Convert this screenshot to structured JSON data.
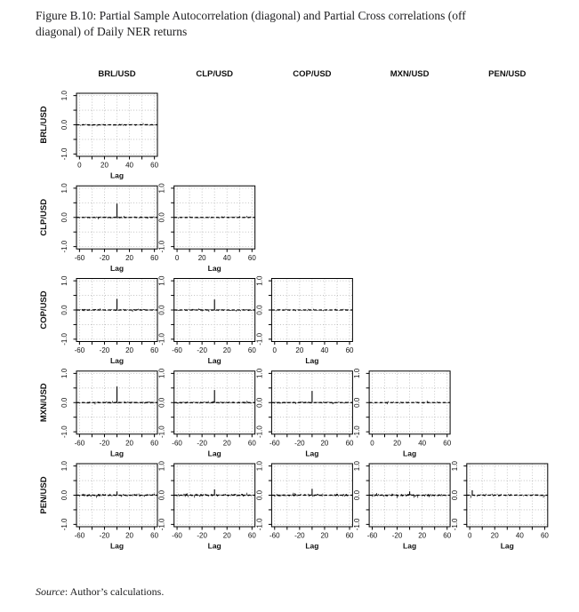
{
  "figure": {
    "title_line1": "Figure B.10: Partial Sample Autocorrelation (diagonal) and Partial Cross correlations (off",
    "title_line2": "diagonal) of Daily NER returns",
    "source_label": "Source",
    "source_text": ": Author’s calculations."
  },
  "matrix": {
    "variables": [
      "BRL/USD",
      "CLP/USD",
      "COP/USD",
      "MXN/USD",
      "PEN/USD"
    ],
    "xlabel": "Lag",
    "axes": {
      "diagonal": {
        "xlim": [
          0,
          60
        ],
        "x_ticks": [
          0,
          10,
          20,
          30,
          40,
          50,
          60
        ],
        "x_tick_labels": [
          "0",
          "20",
          "40",
          "60"
        ],
        "x_tick_label_values": [
          0,
          20,
          40,
          60
        ]
      },
      "off_diagonal": {
        "xlim": [
          -60,
          60
        ],
        "x_ticks": [
          -60,
          -40,
          -20,
          0,
          20,
          40,
          60
        ],
        "x_tick_labels": [
          "-60",
          "-20",
          "20",
          "60"
        ],
        "x_tick_label_values": [
          -60,
          -20,
          20,
          60
        ]
      },
      "ylim": [
        -1,
        1
      ],
      "y_ticks": [
        -1,
        -0.5,
        0,
        0.5,
        1
      ],
      "y_tick_labels": [
        "-1.0",
        "0.0",
        "1.0"
      ],
      "y_tick_label_values": [
        -1,
        0,
        1
      ],
      "grid": true,
      "zero_line": true
    }
  },
  "chart_data": [
    {
      "type": "line",
      "grid": [
        0,
        0
      ],
      "row_var": "BRL/USD",
      "col_var": "BRL/USD",
      "diagonal": true,
      "xlabel": "Lag",
      "xlim": [
        0,
        60
      ],
      "ylim": [
        -1,
        1
      ],
      "peak": null,
      "noise_amplitude": 0.04
    },
    {
      "type": "line",
      "grid": [
        1,
        0
      ],
      "row_var": "CLP/USD",
      "col_var": "BRL/USD",
      "diagonal": false,
      "xlabel": "Lag",
      "xlim": [
        -60,
        60
      ],
      "ylim": [
        -1,
        1
      ],
      "peak": {
        "lag": 0,
        "value": 0.47
      },
      "noise_amplitude": 0.035
    },
    {
      "type": "line",
      "grid": [
        1,
        1
      ],
      "row_var": "CLP/USD",
      "col_var": "CLP/USD",
      "diagonal": true,
      "xlabel": "Lag",
      "xlim": [
        0,
        60
      ],
      "ylim": [
        -1,
        1
      ],
      "peak": null,
      "noise_amplitude": 0.04
    },
    {
      "type": "line",
      "grid": [
        2,
        0
      ],
      "row_var": "COP/USD",
      "col_var": "BRL/USD",
      "diagonal": false,
      "xlabel": "Lag",
      "xlim": [
        -60,
        60
      ],
      "ylim": [
        -1,
        1
      ],
      "peak": {
        "lag": 0,
        "value": 0.38
      },
      "noise_amplitude": 0.035
    },
    {
      "type": "line",
      "grid": [
        2,
        1
      ],
      "row_var": "COP/USD",
      "col_var": "CLP/USD",
      "diagonal": false,
      "xlabel": "Lag",
      "xlim": [
        -60,
        60
      ],
      "ylim": [
        -1,
        1
      ],
      "peak": {
        "lag": 0,
        "value": 0.36
      },
      "noise_amplitude": 0.035
    },
    {
      "type": "line",
      "grid": [
        2,
        2
      ],
      "row_var": "COP/USD",
      "col_var": "COP/USD",
      "diagonal": true,
      "xlabel": "Lag",
      "xlim": [
        0,
        60
      ],
      "ylim": [
        -1,
        1
      ],
      "peak": null,
      "noise_amplitude": 0.04
    },
    {
      "type": "line",
      "grid": [
        3,
        0
      ],
      "row_var": "MXN/USD",
      "col_var": "BRL/USD",
      "diagonal": false,
      "xlabel": "Lag",
      "xlim": [
        -60,
        60
      ],
      "ylim": [
        -1,
        1
      ],
      "peak": {
        "lag": 0,
        "value": 0.55
      },
      "noise_amplitude": 0.035
    },
    {
      "type": "line",
      "grid": [
        3,
        1
      ],
      "row_var": "MXN/USD",
      "col_var": "CLP/USD",
      "diagonal": false,
      "xlabel": "Lag",
      "xlim": [
        -60,
        60
      ],
      "ylim": [
        -1,
        1
      ],
      "peak": {
        "lag": 0,
        "value": 0.43
      },
      "noise_amplitude": 0.035
    },
    {
      "type": "line",
      "grid": [
        3,
        2
      ],
      "row_var": "MXN/USD",
      "col_var": "COP/USD",
      "diagonal": false,
      "xlabel": "Lag",
      "xlim": [
        -60,
        60
      ],
      "ylim": [
        -1,
        1
      ],
      "peak": {
        "lag": 0,
        "value": 0.4
      },
      "noise_amplitude": 0.035
    },
    {
      "type": "line",
      "grid": [
        3,
        3
      ],
      "row_var": "MXN/USD",
      "col_var": "MXN/USD",
      "diagonal": true,
      "xlabel": "Lag",
      "xlim": [
        0,
        60
      ],
      "ylim": [
        -1,
        1
      ],
      "peak": null,
      "noise_amplitude": 0.04
    },
    {
      "type": "line",
      "grid": [
        4,
        0
      ],
      "row_var": "PEN/USD",
      "col_var": "BRL/USD",
      "diagonal": false,
      "xlabel": "Lag",
      "xlim": [
        -60,
        60
      ],
      "ylim": [
        -1,
        1
      ],
      "peak": {
        "lag": 0,
        "value": 0.13
      },
      "noise_amplitude": 0.05
    },
    {
      "type": "line",
      "grid": [
        4,
        1
      ],
      "row_var": "PEN/USD",
      "col_var": "CLP/USD",
      "diagonal": false,
      "xlabel": "Lag",
      "xlim": [
        -60,
        60
      ],
      "ylim": [
        -1,
        1
      ],
      "peak": {
        "lag": 0,
        "value": 0.2
      },
      "noise_amplitude": 0.05
    },
    {
      "type": "line",
      "grid": [
        4,
        2
      ],
      "row_var": "PEN/USD",
      "col_var": "COP/USD",
      "diagonal": false,
      "xlabel": "Lag",
      "xlim": [
        -60,
        60
      ],
      "ylim": [
        -1,
        1
      ],
      "peak": {
        "lag": 0,
        "value": 0.22
      },
      "noise_amplitude": 0.05
    },
    {
      "type": "line",
      "grid": [
        4,
        3
      ],
      "row_var": "PEN/USD",
      "col_var": "MXN/USD",
      "diagonal": false,
      "xlabel": "Lag",
      "xlim": [
        -60,
        60
      ],
      "ylim": [
        -1,
        1
      ],
      "peak": {
        "lag": 0,
        "value": 0.13
      },
      "noise_amplitude": 0.05
    },
    {
      "type": "line",
      "grid": [
        4,
        4
      ],
      "row_var": "PEN/USD",
      "col_var": "PEN/USD",
      "diagonal": true,
      "xlabel": "Lag",
      "xlim": [
        0,
        60
      ],
      "ylim": [
        -1,
        1
      ],
      "peak": {
        "lag": 2,
        "value": 0.17
      },
      "noise_amplitude": 0.05
    }
  ],
  "colors": {
    "frame": "#000000",
    "grid": "#b8b8b8",
    "zero_line": "#000000",
    "data": "#000000",
    "text": "#111111",
    "title": "#1c1c1e"
  }
}
